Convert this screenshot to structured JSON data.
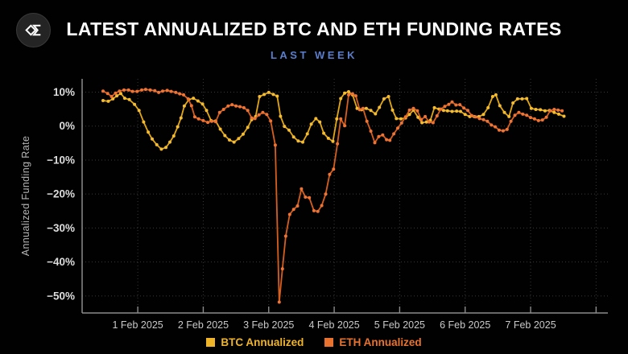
{
  "header": {
    "title": "LATEST ANNUALIZED BTC AND ETH FUNDING RATES",
    "subtitle": "LAST WEEK"
  },
  "colors": {
    "background": "#010101",
    "title_text": "#ffffff",
    "subtitle_text": "#5b7ecc",
    "axis_line": "#8c8c8c",
    "grid_line": "#3a3a3a",
    "y_tick_text": "#dcdcdc",
    "x_tick_text": "#c9c9c9",
    "axis_title_text": "#b5b5b5",
    "btc_accent": "#f0b429",
    "eth_accent": "#e9732e",
    "logo_glyph": "#ffffff"
  },
  "chart_data": {
    "type": "line",
    "title": "LATEST ANNUALIZED BTC AND ETH FUNDING RATES",
    "subtitle": "LAST WEEK",
    "ylabel": "Annualized Funding Rate",
    "xlabel": "",
    "x_unit": "days relative to 1 Feb 2025 00:00",
    "xlim": [
      -0.85,
      7.18
    ],
    "ylim": [
      -55,
      13.9
    ],
    "grid": "dotted",
    "legend_position": "bottom-center",
    "y_ticks": [
      {
        "value": 10,
        "label": "10%"
      },
      {
        "value": 0,
        "label": "0%"
      },
      {
        "value": -10,
        "label": "−10%"
      },
      {
        "value": -20,
        "label": "−20%"
      },
      {
        "value": -30,
        "label": "−30%"
      },
      {
        "value": -40,
        "label": "−40%"
      },
      {
        "value": -50,
        "label": "−50%"
      }
    ],
    "x_ticks": [
      {
        "value": 0,
        "label": "1 Feb 2025"
      },
      {
        "value": 1,
        "label": "2 Feb 2025"
      },
      {
        "value": 2,
        "label": "3 Feb 2025"
      },
      {
        "value": 3,
        "label": "4 Feb 2025"
      },
      {
        "value": 4,
        "label": "5 Feb 2025"
      },
      {
        "value": 5,
        "label": "6 Feb 2025"
      },
      {
        "value": 6,
        "label": "7 Feb 2025"
      }
    ],
    "x_gridlines": [
      0,
      1,
      2,
      3,
      4,
      5,
      6,
      7
    ],
    "series": [
      {
        "name": "BTC Annualized",
        "color": "#e2a714",
        "marker_color": "#f5bc2f",
        "points": [
          [
            -0.53,
            7.5
          ],
          [
            -0.45,
            7.3
          ],
          [
            -0.38,
            8.0
          ],
          [
            -0.32,
            8.9
          ],
          [
            -0.26,
            9.6
          ],
          [
            -0.2,
            8.2
          ],
          [
            -0.13,
            7.8
          ],
          [
            -0.05,
            6.4
          ],
          [
            0.02,
            4.6
          ],
          [
            0.09,
            1.2
          ],
          [
            0.16,
            -1.8
          ],
          [
            0.22,
            -3.8
          ],
          [
            0.29,
            -5.5
          ],
          [
            0.36,
            -6.8
          ],
          [
            0.43,
            -6.3
          ],
          [
            0.49,
            -4.7
          ],
          [
            0.55,
            -2.9
          ],
          [
            0.61,
            -0.2
          ],
          [
            0.66,
            2.4
          ],
          [
            0.71,
            5.9
          ],
          [
            0.78,
            7.8
          ],
          [
            0.85,
            8.2
          ],
          [
            0.92,
            7.4
          ],
          [
            0.99,
            6.5
          ],
          [
            1.05,
            4.6
          ],
          [
            1.12,
            1.6
          ],
          [
            1.19,
            1.5
          ],
          [
            1.26,
            -0.9
          ],
          [
            1.33,
            -2.8
          ],
          [
            1.4,
            -4.1
          ],
          [
            1.47,
            -4.7
          ],
          [
            1.54,
            -3.7
          ],
          [
            1.61,
            -2.4
          ],
          [
            1.68,
            -0.4
          ],
          [
            1.74,
            1.9
          ],
          [
            1.8,
            2.8
          ],
          [
            1.86,
            8.7
          ],
          [
            1.93,
            9.3
          ],
          [
            2.0,
            9.9
          ],
          [
            2.07,
            9.3
          ],
          [
            2.13,
            8.8
          ],
          [
            2.18,
            2.9
          ],
          [
            2.24,
            -0.1
          ],
          [
            2.31,
            -1.2
          ],
          [
            2.38,
            -3.2
          ],
          [
            2.45,
            -4.4
          ],
          [
            2.52,
            -4.7
          ],
          [
            2.59,
            -2.3
          ],
          [
            2.65,
            0.6
          ],
          [
            2.72,
            2.2
          ],
          [
            2.78,
            1.2
          ],
          [
            2.84,
            -2.1
          ],
          [
            2.91,
            -3.6
          ],
          [
            2.98,
            -4.5
          ],
          [
            3.04,
            2.1
          ],
          [
            3.1,
            8.1
          ],
          [
            3.16,
            9.7
          ],
          [
            3.22,
            10.1
          ],
          [
            3.28,
            9.2
          ],
          [
            3.35,
            5.2
          ],
          [
            3.42,
            4.8
          ],
          [
            3.49,
            5.2
          ],
          [
            3.56,
            4.6
          ],
          [
            3.63,
            3.6
          ],
          [
            3.69,
            5.5
          ],
          [
            3.76,
            8.0
          ],
          [
            3.83,
            8.7
          ],
          [
            3.89,
            4.7
          ],
          [
            3.95,
            2.2
          ],
          [
            4.02,
            2.1
          ],
          [
            4.09,
            2.4
          ],
          [
            4.15,
            3.4
          ],
          [
            4.21,
            4.7
          ],
          [
            4.28,
            2.6
          ],
          [
            4.34,
            1.0
          ],
          [
            4.41,
            1.2
          ],
          [
            4.47,
            1.7
          ],
          [
            4.53,
            5.4
          ],
          [
            4.6,
            5.0
          ],
          [
            4.67,
            4.6
          ],
          [
            4.73,
            4.5
          ],
          [
            4.8,
            4.3
          ],
          [
            4.87,
            4.4
          ],
          [
            4.93,
            4.3
          ],
          [
            5.0,
            3.4
          ],
          [
            5.07,
            2.8
          ],
          [
            5.14,
            2.8
          ],
          [
            5.21,
            2.8
          ],
          [
            5.28,
            3.4
          ],
          [
            5.35,
            5.4
          ],
          [
            5.42,
            8.7
          ],
          [
            5.47,
            9.2
          ],
          [
            5.53,
            6.0
          ],
          [
            5.6,
            4.0
          ],
          [
            5.67,
            2.8
          ],
          [
            5.73,
            6.8
          ],
          [
            5.8,
            8.0
          ],
          [
            5.87,
            8.0
          ],
          [
            5.94,
            8.1
          ],
          [
            6.01,
            5.2
          ],
          [
            6.08,
            4.9
          ],
          [
            6.15,
            4.8
          ],
          [
            6.22,
            4.5
          ],
          [
            6.29,
            4.6
          ],
          [
            6.36,
            4.0
          ],
          [
            6.43,
            3.5
          ],
          [
            6.51,
            2.9
          ]
        ]
      },
      {
        "name": "ETH Annualized",
        "color": "#d65f1e",
        "marker_color": "#ef7434",
        "points": [
          [
            -0.53,
            10.3
          ],
          [
            -0.46,
            9.6
          ],
          [
            -0.4,
            8.7
          ],
          [
            -0.34,
            9.7
          ],
          [
            -0.28,
            10.3
          ],
          [
            -0.21,
            10.6
          ],
          [
            -0.14,
            10.6
          ],
          [
            -0.08,
            10.2
          ],
          [
            -0.01,
            10.2
          ],
          [
            0.06,
            10.6
          ],
          [
            0.12,
            10.8
          ],
          [
            0.19,
            10.6
          ],
          [
            0.26,
            10.4
          ],
          [
            0.32,
            9.9
          ],
          [
            0.38,
            10.3
          ],
          [
            0.45,
            10.5
          ],
          [
            0.51,
            10.2
          ],
          [
            0.58,
            9.9
          ],
          [
            0.64,
            9.5
          ],
          [
            0.7,
            9.2
          ],
          [
            0.77,
            8.0
          ],
          [
            0.82,
            6.0
          ],
          [
            0.87,
            2.7
          ],
          [
            0.93,
            2.1
          ],
          [
            1.0,
            1.6
          ],
          [
            1.07,
            1.1
          ],
          [
            1.13,
            1.4
          ],
          [
            1.19,
            1.3
          ],
          [
            1.25,
            4.0
          ],
          [
            1.31,
            4.9
          ],
          [
            1.38,
            5.9
          ],
          [
            1.44,
            6.3
          ],
          [
            1.5,
            5.9
          ],
          [
            1.56,
            5.7
          ],
          [
            1.62,
            5.4
          ],
          [
            1.68,
            4.6
          ],
          [
            1.74,
            2.4
          ],
          [
            1.79,
            2.2
          ],
          [
            1.85,
            3.3
          ],
          [
            1.91,
            4.0
          ],
          [
            1.97,
            3.4
          ],
          [
            2.03,
            1.5
          ],
          [
            2.1,
            -5.6
          ],
          [
            2.16,
            -51.8
          ],
          [
            2.21,
            -42.0
          ],
          [
            2.26,
            -32.4
          ],
          [
            2.32,
            -26.0
          ],
          [
            2.38,
            -24.5
          ],
          [
            2.44,
            -23.5
          ],
          [
            2.5,
            -18.5
          ],
          [
            2.56,
            -20.9
          ],
          [
            2.62,
            -21.1
          ],
          [
            2.69,
            -24.9
          ],
          [
            2.75,
            -25.1
          ],
          [
            2.81,
            -23.4
          ],
          [
            2.87,
            -20.0
          ],
          [
            2.93,
            -14.2
          ],
          [
            2.99,
            -12.7
          ],
          [
            3.05,
            -5.2
          ],
          [
            3.1,
            2.1
          ],
          [
            3.16,
            0.1
          ],
          [
            3.22,
            9.2
          ],
          [
            3.28,
            9.5
          ],
          [
            3.33,
            8.9
          ],
          [
            3.39,
            4.8
          ],
          [
            3.44,
            5.2
          ],
          [
            3.5,
            1.4
          ],
          [
            3.56,
            -1.5
          ],
          [
            3.62,
            -4.9
          ],
          [
            3.68,
            -3.1
          ],
          [
            3.74,
            -2.6
          ],
          [
            3.8,
            -4.0
          ],
          [
            3.85,
            -4.2
          ],
          [
            3.91,
            -2.3
          ],
          [
            3.97,
            -0.6
          ],
          [
            4.03,
            0.9
          ],
          [
            4.09,
            2.7
          ],
          [
            4.15,
            4.7
          ],
          [
            4.21,
            5.2
          ],
          [
            4.27,
            4.5
          ],
          [
            4.33,
            1.9
          ],
          [
            4.39,
            2.8
          ],
          [
            4.45,
            1.2
          ],
          [
            4.51,
            1.0
          ],
          [
            4.57,
            3.0
          ],
          [
            4.63,
            5.0
          ],
          [
            4.69,
            5.8
          ],
          [
            4.75,
            6.4
          ],
          [
            4.8,
            7.1
          ],
          [
            4.86,
            6.2
          ],
          [
            4.92,
            6.3
          ],
          [
            4.98,
            5.3
          ],
          [
            5.04,
            4.6
          ],
          [
            5.1,
            3.1
          ],
          [
            5.16,
            2.7
          ],
          [
            5.22,
            2.2
          ],
          [
            5.28,
            1.9
          ],
          [
            5.34,
            1.4
          ],
          [
            5.4,
            0.3
          ],
          [
            5.46,
            -0.2
          ],
          [
            5.52,
            -1.2
          ],
          [
            5.58,
            -1.4
          ],
          [
            5.64,
            -1.0
          ],
          [
            5.7,
            1.4
          ],
          [
            5.76,
            3.2
          ],
          [
            5.82,
            4.0
          ],
          [
            5.88,
            3.5
          ],
          [
            5.94,
            3.2
          ],
          [
            6.0,
            2.5
          ],
          [
            6.06,
            2.1
          ],
          [
            6.12,
            1.6
          ],
          [
            6.18,
            1.8
          ],
          [
            6.24,
            2.6
          ],
          [
            6.3,
            4.5
          ],
          [
            6.36,
            4.9
          ],
          [
            6.42,
            4.7
          ],
          [
            6.48,
            4.5
          ]
        ]
      }
    ]
  },
  "legend": {
    "items": [
      {
        "label": "BTC Annualized",
        "swatch_color": "#f0b429",
        "text_color": "#f0b429"
      },
      {
        "label": "ETH Annualized",
        "swatch_color": "#e9732e",
        "text_color": "#e9732e"
      }
    ]
  }
}
